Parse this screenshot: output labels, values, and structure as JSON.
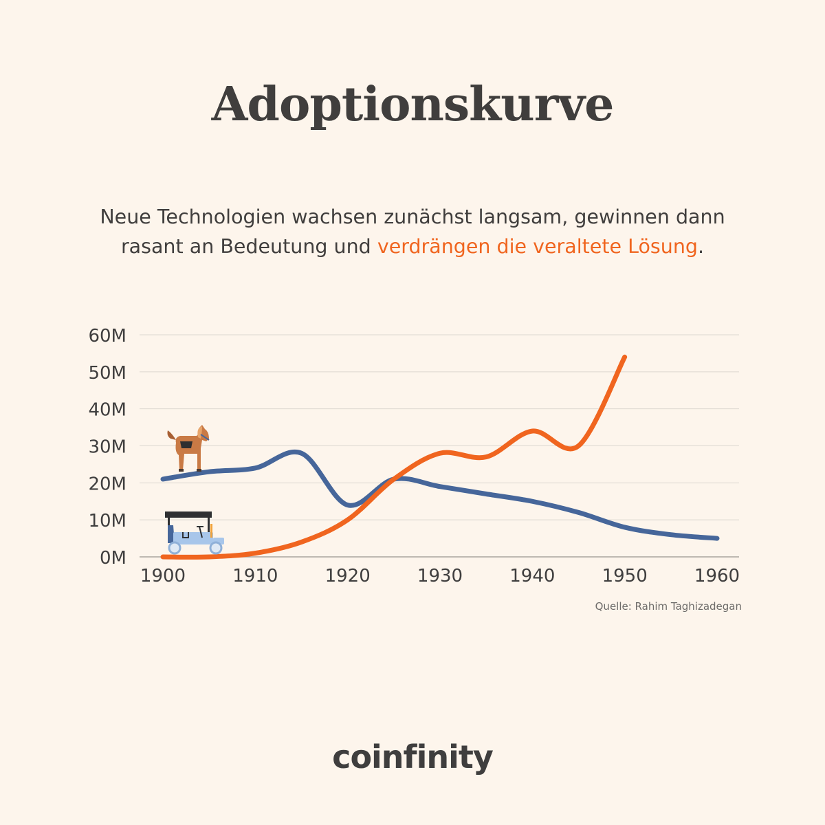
{
  "title": "Adoptionskurve",
  "subtitle": {
    "line1": "Neue Technologien wachsen zunächst langsam, gewinnen dann",
    "line2_prefix": "rasant an Bedeutung und ",
    "line2_highlight": "verdrängen die veraltete Lösung",
    "line2_suffix": "."
  },
  "source": "Quelle: Rahim Taghizadegan",
  "logo": "coinfinity",
  "colors": {
    "background": "#fdf5ec",
    "horse_series": "#46669a",
    "car_series": "#f0651f",
    "highlight": "#f0651f",
    "grid": "#dcd6cf"
  },
  "icons": {
    "horse": "horse-icon",
    "car": "automobile-icon"
  },
  "chart_data": {
    "type": "line",
    "title": "",
    "xlabel": "",
    "ylabel": "",
    "xlim": [
      1900,
      1960
    ],
    "ylim": [
      0,
      60
    ],
    "x_ticks": [
      "1900",
      "1910",
      "1920",
      "1930",
      "1940",
      "1950",
      "1960"
    ],
    "y_ticks": [
      "0M",
      "10M",
      "20M",
      "30M",
      "40M",
      "50M",
      "60M"
    ],
    "y_unit": "M",
    "grid": true,
    "legend": "none (series marked by icons at left)",
    "series": [
      {
        "icon": "horse-icon",
        "color": "#46669a",
        "x": [
          1900,
          1905,
          1910,
          1915,
          1920,
          1925,
          1930,
          1935,
          1940,
          1945,
          1950,
          1955,
          1960
        ],
        "values": [
          21,
          23,
          24,
          28,
          14,
          21,
          19,
          17,
          15,
          12,
          8,
          6,
          5
        ]
      },
      {
        "icon": "automobile-icon",
        "color": "#f0651f",
        "x": [
          1900,
          1905,
          1910,
          1915,
          1920,
          1925,
          1930,
          1935,
          1940,
          1945,
          1950
        ],
        "values": [
          0,
          0,
          1,
          4,
          10,
          21,
          28,
          27,
          34,
          30,
          54
        ]
      }
    ]
  }
}
